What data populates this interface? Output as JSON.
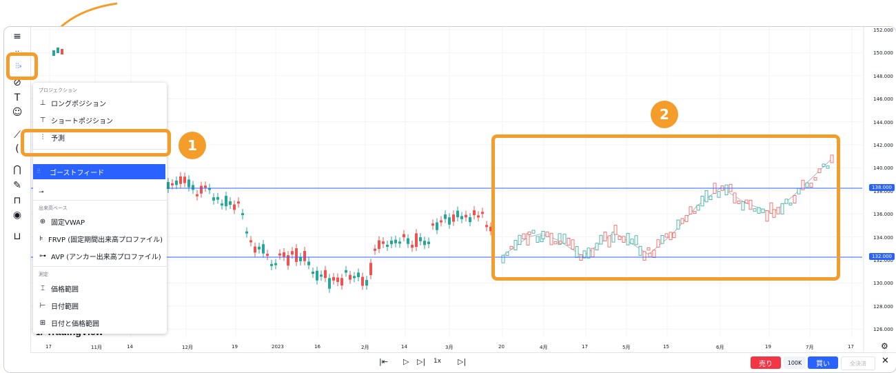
{
  "toolbar": {
    "icons": [
      "crosshair-lines-icon",
      "dots-icon",
      "ghostfeed-icon",
      "brush-icon",
      "text-icon",
      "emoji-icon",
      "ruler-icon",
      "circle-icon",
      "magnet-icon",
      "pencil-lock-icon",
      "lock-icon",
      "eye-icon",
      "trash-icon"
    ]
  },
  "menu": {
    "section_projection": "プロジェクション",
    "items_projection": [
      {
        "label": "ロングポジション",
        "icon": "long-position-icon"
      },
      {
        "label": "ショートポジション",
        "icon": "short-position-icon"
      },
      {
        "label": "予測",
        "icon": "forecast-icon"
      }
    ],
    "ghost_feed": "ゴーストフィード",
    "section_volume": "出来高ベース",
    "items_volume": [
      {
        "label": "固定VWAP",
        "icon": "anchored-vwap-icon"
      },
      {
        "label": "FRVP (固定期間出来高プロファイル)",
        "icon": "frvp-icon"
      },
      {
        "label": "AVP (アンカー出来高プロファイル)",
        "icon": "avp-icon"
      }
    ],
    "section_measure": "測定",
    "items_measure": [
      {
        "label": "価格範囲",
        "icon": "price-range-icon"
      },
      {
        "label": "日付範囲",
        "icon": "date-range-icon"
      },
      {
        "label": "日付と価格範囲",
        "icon": "date-price-range-icon"
      }
    ]
  },
  "badges": {
    "one": "1",
    "two": "2"
  },
  "logo": "TradingView",
  "y_axis": [
    "152.000",
    "150.000",
    "148.000",
    "146.000",
    "144.000",
    "142.000",
    "140.000",
    "138.000",
    "136.000",
    "134.000",
    "132.000",
    "130.000",
    "128.000",
    "126.000"
  ],
  "price_tags": {
    "upper": "138.000",
    "lower": "132.000"
  },
  "x_axis": [
    "17",
    "11月",
    "14",
    "12月",
    "19",
    "2023",
    "16",
    "2月",
    "14",
    "3月",
    "20",
    "4月",
    "17",
    "5月",
    "15",
    "6月",
    "19",
    "7月",
    "17"
  ],
  "bottom": {
    "speed": "1x",
    "sell": "売り",
    "qty": "100K",
    "buy": "買い",
    "close_all": "全決済"
  },
  "colors": {
    "up": "#26a69a",
    "down": "#ef5350",
    "accent": "#2962ff",
    "highlight": "#f59d2a"
  }
}
